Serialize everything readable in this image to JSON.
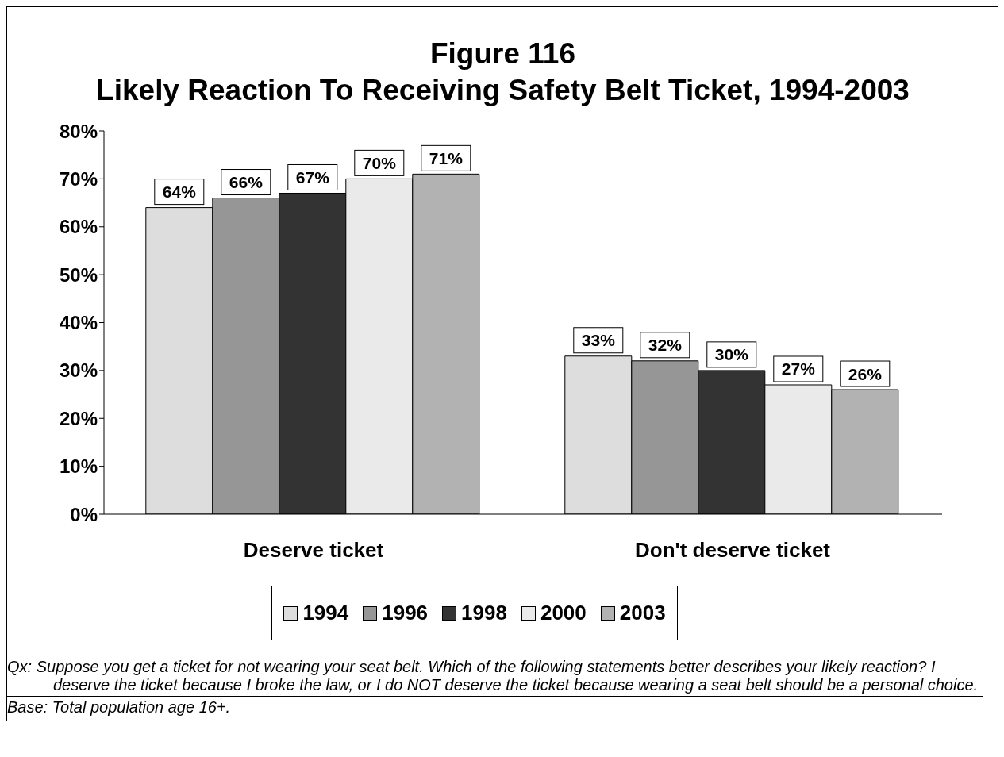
{
  "chart_data": {
    "type": "bar",
    "title": "Figure 116",
    "subtitle": "Likely Reaction To Receiving Safety Belt Ticket, 1994-2003",
    "categories": [
      "Deserve ticket",
      "Don't deserve ticket"
    ],
    "series": [
      {
        "name": "1994",
        "color": "#dddddd",
        "values": [
          64,
          33
        ],
        "value_labels": [
          "64%",
          "33%"
        ]
      },
      {
        "name": "1996",
        "color": "#969696",
        "values": [
          66,
          32
        ],
        "value_labels": [
          "66%",
          "32%"
        ]
      },
      {
        "name": "1998",
        "color": "#333333",
        "values": [
          67,
          30
        ],
        "value_labels": [
          "67%",
          "30%"
        ]
      },
      {
        "name": "2000",
        "color": "#eaeaea",
        "values": [
          70,
          27
        ],
        "value_labels": [
          "70%",
          "27%"
        ]
      },
      {
        "name": "2003",
        "color": "#b2b2b2",
        "values": [
          71,
          26
        ],
        "value_labels": [
          "71%",
          "26%"
        ]
      }
    ],
    "ylim": [
      0,
      80
    ],
    "yticks": [
      {
        "value": 0,
        "label": "0%"
      },
      {
        "value": 10,
        "label": "10%"
      },
      {
        "value": 20,
        "label": "20%"
      },
      {
        "value": 30,
        "label": "30%"
      },
      {
        "value": 40,
        "label": "40%"
      },
      {
        "value": 50,
        "label": "50%"
      },
      {
        "value": 60,
        "label": "60%"
      },
      {
        "value": 70,
        "label": "70%"
      },
      {
        "value": 80,
        "label": "80%"
      }
    ],
    "grid": false,
    "legend": "bottom",
    "annotations": [
      "Qx:   Suppose you get a ticket for not wearing your seat belt.  Which of the following statements better describes your likely reaction?  I deserve the ticket because I broke the law, or I do NOT deserve the ticket because wearing a seat belt should be a personal choice.",
      "Base:  Total population age 16+."
    ]
  }
}
